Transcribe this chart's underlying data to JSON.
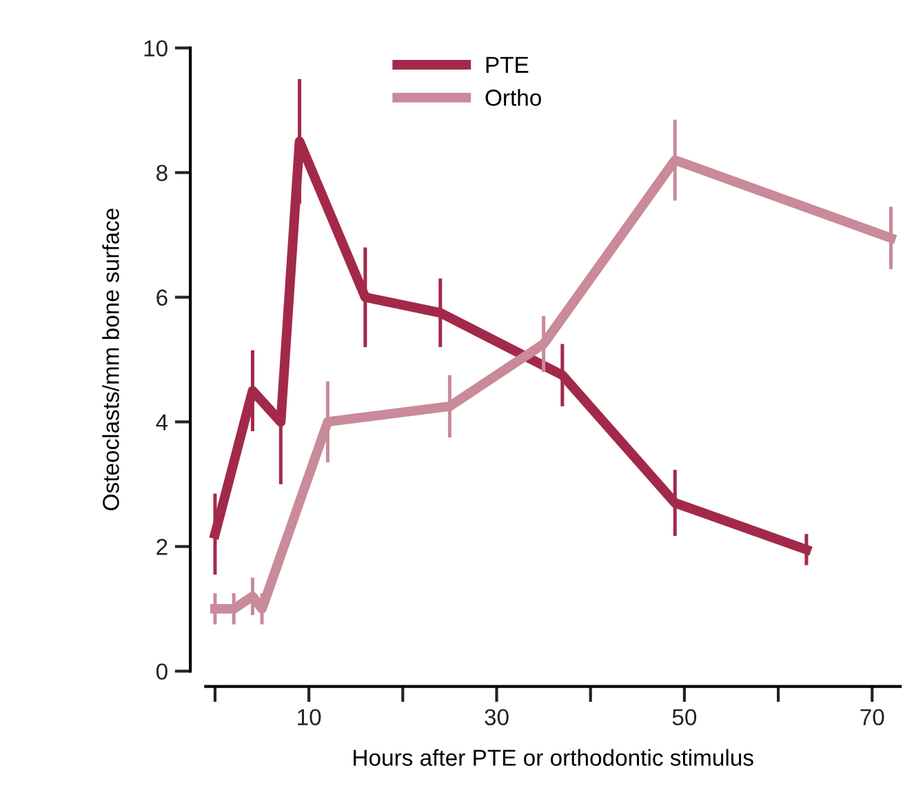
{
  "chart_data": {
    "type": "line",
    "xlabel": "Hours after PTE or orthodontic stimulus",
    "ylabel": "Osteoclasts/mm bone surface",
    "xlim": [
      -1,
      73
    ],
    "ylim": [
      0,
      10
    ],
    "xticks": [
      {
        "value": 0,
        "label": null
      },
      10,
      {
        "value": 20,
        "label": null
      },
      30,
      {
        "value": 40,
        "label": null
      },
      50,
      {
        "value": 60,
        "label": null
      },
      70
    ],
    "yticks": [
      0,
      2,
      4,
      6,
      8,
      10
    ],
    "grid": false,
    "legend": "top",
    "marker": "none",
    "line_style": "solid",
    "series": [
      {
        "name": "PTE",
        "color": "#a3294a",
        "x": [
          0,
          4,
          7,
          9,
          16,
          24,
          37,
          49,
          63
        ],
        "values": [
          2.2,
          4.5,
          4.0,
          8.5,
          6.0,
          5.75,
          4.75,
          2.7,
          1.95
        ],
        "errors": [
          0.65,
          0.65,
          [
            3.0,
            4.0
          ],
          1.0,
          0.8,
          0.55,
          0.5,
          0.53,
          0.25
        ]
      },
      {
        "name": "Ortho",
        "color": "#c98a9a",
        "x": [
          0,
          2,
          4,
          5,
          12,
          25,
          35,
          49,
          72
        ],
        "values": [
          1.0,
          1.0,
          1.2,
          1.0,
          4.0,
          4.25,
          5.25,
          8.2,
          6.95
        ],
        "errors": [
          0.25,
          0.25,
          0.3,
          0.25,
          0.65,
          0.5,
          0.45,
          0.65,
          0.5
        ]
      }
    ]
  }
}
